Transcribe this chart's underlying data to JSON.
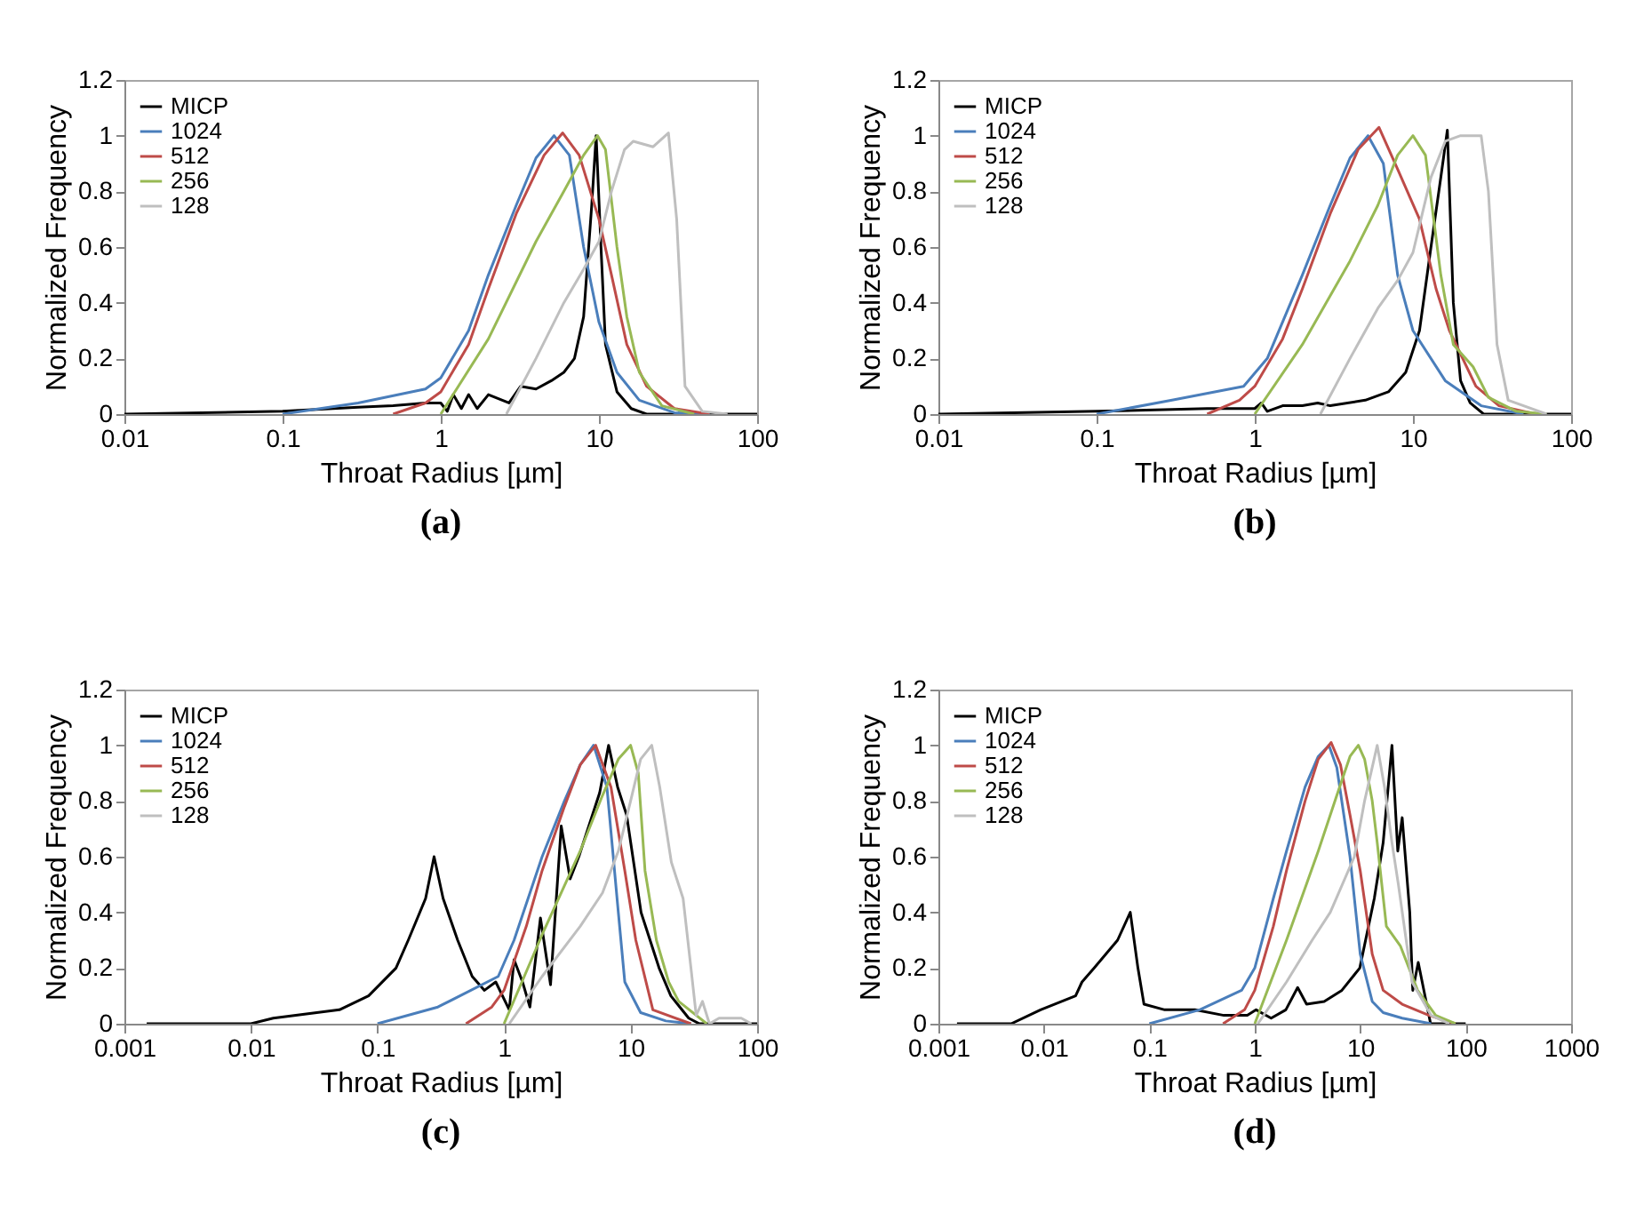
{
  "chart_data": [
    {
      "type": "line",
      "title": "(a)",
      "xlabel": "Throat Radius [µm]",
      "ylabel": "Normalized Frequency",
      "log": "x",
      "grid": false,
      "legend": "top left",
      "xlim": [
        0.01,
        100
      ],
      "xticks": [
        0.01,
        0.1,
        1,
        10,
        100
      ],
      "ylim": [
        0,
        1.2
      ],
      "yticks": [
        0,
        0.2,
        0.4,
        0.6,
        0.8,
        1,
        1.2
      ],
      "series": [
        {
          "name": "MICP",
          "color": "#000000",
          "x": [
            0.01,
            0.1,
            0.3,
            0.5,
            0.8,
            1,
            1.1,
            1.2,
            1.35,
            1.5,
            1.7,
            2,
            2.7,
            3.2,
            4,
            5,
            6,
            7,
            8,
            9,
            9.6,
            10.3,
            11,
            13,
            16,
            20,
            100
          ],
          "values": [
            0,
            0.01,
            0.025,
            0.03,
            0.04,
            0.04,
            0.01,
            0.07,
            0.02,
            0.07,
            0.02,
            0.07,
            0.04,
            0.1,
            0.09,
            0.12,
            0.15,
            0.2,
            0.35,
            0.75,
            1.0,
            0.6,
            0.25,
            0.08,
            0.02,
            0,
            0
          ]
        },
        {
          "name": "1024",
          "color": "#4a7ebb",
          "x": [
            0.1,
            0.3,
            0.8,
            1,
            1.5,
            2,
            3,
            4,
            5.2,
            6.5,
            8,
            10,
            13,
            18,
            30,
            50
          ],
          "values": [
            0,
            0.04,
            0.09,
            0.13,
            0.3,
            0.5,
            0.75,
            0.92,
            1.0,
            0.93,
            0.6,
            0.33,
            0.15,
            0.05,
            0.005,
            0
          ]
        },
        {
          "name": "512",
          "color": "#be4b48",
          "x": [
            0.5,
            0.8,
            1,
            1.5,
            2,
            3,
            4.5,
            5.9,
            7.5,
            10,
            12,
            15,
            20,
            30,
            50
          ],
          "values": [
            0,
            0.04,
            0.08,
            0.25,
            0.45,
            0.72,
            0.93,
            1.01,
            0.93,
            0.7,
            0.5,
            0.25,
            0.1,
            0.02,
            0
          ]
        },
        {
          "name": "256",
          "color": "#98b954",
          "x": [
            1,
            2,
            4,
            6,
            8,
            9.8,
            11,
            13,
            15,
            18,
            25,
            40
          ],
          "values": [
            0,
            0.27,
            0.62,
            0.8,
            0.93,
            1.0,
            0.95,
            0.6,
            0.35,
            0.15,
            0.03,
            0
          ]
        },
        {
          "name": "128",
          "color": "#bfbfbf",
          "x": [
            2.6,
            4,
            6,
            8,
            10,
            12,
            14.5,
            16.5,
            22,
            27.5,
            31,
            35,
            45,
            65
          ],
          "values": [
            0,
            0.2,
            0.4,
            0.52,
            0.62,
            0.8,
            0.95,
            0.98,
            0.96,
            1.01,
            0.7,
            0.1,
            0.01,
            0
          ]
        }
      ]
    },
    {
      "type": "line",
      "title": "(b)",
      "xlabel": "Throat Radius [µm]",
      "ylabel": "Normalized Frequency",
      "log": "x",
      "grid": false,
      "legend": "top left",
      "xlim": [
        0.01,
        100
      ],
      "xticks": [
        0.01,
        0.1,
        1,
        10,
        100
      ],
      "ylim": [
        0,
        1.2
      ],
      "yticks": [
        0,
        0.2,
        0.4,
        0.6,
        0.8,
        1,
        1.2
      ],
      "series": [
        {
          "name": "MICP",
          "color": "#000000",
          "x": [
            0.01,
            0.1,
            0.5,
            1,
            1.1,
            1.2,
            1.5,
            2,
            2.5,
            3,
            5,
            7,
            9,
            11,
            13,
            15,
            16.5,
            18,
            20,
            23,
            28,
            100
          ],
          "values": [
            0,
            0.01,
            0.02,
            0.02,
            0.04,
            0.01,
            0.03,
            0.03,
            0.04,
            0.03,
            0.05,
            0.08,
            0.15,
            0.3,
            0.6,
            0.85,
            1.02,
            0.4,
            0.12,
            0.04,
            0,
            0
          ]
        },
        {
          "name": "1024",
          "color": "#4a7ebb",
          "x": [
            0.1,
            0.3,
            0.85,
            1.2,
            2,
            3,
            4,
            5.2,
            6.5,
            8,
            10,
            16,
            27,
            50
          ],
          "values": [
            0,
            0.05,
            0.1,
            0.2,
            0.5,
            0.75,
            0.92,
            1.0,
            0.9,
            0.5,
            0.3,
            0.12,
            0.03,
            0
          ]
        },
        {
          "name": "512",
          "color": "#be4b48",
          "x": [
            0.5,
            0.8,
            1,
            1.5,
            2,
            3,
            4.5,
            6.1,
            8,
            11,
            14,
            17,
            25,
            35,
            60
          ],
          "values": [
            0,
            0.05,
            0.1,
            0.27,
            0.45,
            0.72,
            0.95,
            1.03,
            0.88,
            0.7,
            0.45,
            0.3,
            0.1,
            0.03,
            0
          ]
        },
        {
          "name": "256",
          "color": "#98b954",
          "x": [
            1,
            2,
            4,
            6,
            8,
            10,
            12,
            15,
            18,
            24,
            30,
            45,
            70
          ],
          "values": [
            0,
            0.25,
            0.55,
            0.75,
            0.93,
            1.0,
            0.93,
            0.5,
            0.25,
            0.17,
            0.06,
            0.01,
            0
          ]
        },
        {
          "name": "128",
          "color": "#bfbfbf",
          "x": [
            2.6,
            4,
            6,
            8,
            10,
            13,
            16,
            20,
            27,
            30,
            34,
            40,
            70
          ],
          "values": [
            0,
            0.2,
            0.38,
            0.48,
            0.58,
            0.85,
            0.98,
            1.0,
            1.0,
            0.8,
            0.25,
            0.05,
            0
          ]
        }
      ]
    },
    {
      "type": "line",
      "title": "(c)",
      "xlabel": "Throat Radius [µm]",
      "ylabel": "Normalized Frequency",
      "log": "x",
      "grid": false,
      "legend": "top left",
      "xlim": [
        0.001,
        100
      ],
      "xticks": [
        0.001,
        0.01,
        0.1,
        1,
        10,
        100
      ],
      "ylim": [
        0,
        1.2
      ],
      "yticks": [
        0,
        0.2,
        0.4,
        0.6,
        0.8,
        1,
        1.2
      ],
      "series": [
        {
          "name": "MICP",
          "color": "#000000",
          "x": [
            0.0015,
            0.01,
            0.015,
            0.05,
            0.085,
            0.14,
            0.175,
            0.24,
            0.28,
            0.33,
            0.43,
            0.56,
            0.7,
            0.86,
            1.1,
            1.2,
            1.4,
            1.6,
            1.94,
            2.33,
            2.83,
            3.33,
            3.9,
            5.7,
            6.7,
            7.9,
            9.3,
            12.1,
            16.8,
            20.8,
            28.8,
            35,
            100
          ],
          "values": [
            0,
            0,
            0.02,
            0.05,
            0.1,
            0.2,
            0.3,
            0.45,
            0.6,
            0.45,
            0.3,
            0.17,
            0.12,
            0.15,
            0.05,
            0.23,
            0.15,
            0.06,
            0.38,
            0.14,
            0.71,
            0.52,
            0.6,
            0.83,
            1.0,
            0.85,
            0.75,
            0.4,
            0.2,
            0.1,
            0.02,
            0,
            0
          ]
        },
        {
          "name": "1024",
          "color": "#4a7ebb",
          "x": [
            0.1,
            0.3,
            0.9,
            1.2,
            2,
            3,
            4,
            5.1,
            6.5,
            8,
            9,
            12,
            19,
            30
          ],
          "values": [
            0,
            0.06,
            0.17,
            0.3,
            0.6,
            0.8,
            0.93,
            1.0,
            0.85,
            0.4,
            0.15,
            0.04,
            0.01,
            0
          ]
        },
        {
          "name": "512",
          "color": "#be4b48",
          "x": [
            0.5,
            0.8,
            1,
            1.5,
            2,
            3,
            4,
            5.3,
            7,
            9,
            11,
            15,
            30
          ],
          "values": [
            0,
            0.06,
            0.12,
            0.35,
            0.55,
            0.78,
            0.93,
            1.0,
            0.85,
            0.55,
            0.3,
            0.05,
            0
          ]
        },
        {
          "name": "256",
          "color": "#98b954",
          "x": [
            1,
            2,
            4,
            6,
            8,
            10,
            11.5,
            13,
            16,
            20,
            24,
            40
          ],
          "values": [
            0,
            0.32,
            0.62,
            0.82,
            0.95,
            1.0,
            0.9,
            0.55,
            0.3,
            0.15,
            0.08,
            0
          ]
        },
        {
          "name": "128",
          "color": "#bfbfbf",
          "x": [
            1.1,
            2,
            4,
            6,
            8,
            10,
            12,
            14.7,
            17,
            21,
            26,
            30,
            33,
            37,
            42,
            50,
            75,
            90
          ],
          "values": [
            0,
            0.17,
            0.35,
            0.47,
            0.62,
            0.8,
            0.95,
            1.0,
            0.85,
            0.58,
            0.45,
            0.2,
            0.03,
            0.08,
            0,
            0.02,
            0.02,
            0
          ]
        }
      ]
    },
    {
      "type": "line",
      "title": "(d)",
      "xlabel": "Throat Radius [µm]",
      "ylabel": "Normalized Frequency",
      "log": "x",
      "grid": false,
      "legend": "top left",
      "xlim": [
        0.001,
        1000
      ],
      "xticks": [
        0.001,
        0.01,
        0.1,
        1,
        10,
        100,
        1000
      ],
      "ylim": [
        0,
        1.2
      ],
      "yticks": [
        0,
        0.2,
        0.4,
        0.6,
        0.8,
        1,
        1.2
      ],
      "series": [
        {
          "name": "MICP",
          "color": "#000000",
          "x": [
            0.0015,
            0.0049,
            0.0093,
            0.02,
            0.023,
            0.03,
            0.05,
            0.066,
            0.078,
            0.089,
            0.14,
            0.27,
            0.51,
            0.85,
            1.03,
            1.43,
            1.97,
            2.55,
            3.1,
            4.55,
            6.7,
            9.9,
            13.6,
            16.5,
            20,
            22.7,
            25,
            29.5,
            31.5,
            35.5,
            46.5,
            100
          ],
          "values": [
            0,
            0,
            0.05,
            0.1,
            0.15,
            0.2,
            0.3,
            0.4,
            0.2,
            0.07,
            0.05,
            0.05,
            0.03,
            0.03,
            0.05,
            0.02,
            0.05,
            0.13,
            0.07,
            0.08,
            0.12,
            0.2,
            0.45,
            0.65,
            1.0,
            0.62,
            0.74,
            0.4,
            0.12,
            0.22,
            0,
            0
          ]
        },
        {
          "name": "1024",
          "color": "#4a7ebb",
          "x": [
            0.1,
            0.3,
            0.75,
            1,
            1.5,
            2,
            3,
            4,
            5.05,
            6,
            8,
            10,
            13,
            16.5,
            25,
            47
          ],
          "values": [
            0,
            0.05,
            0.12,
            0.2,
            0.45,
            0.62,
            0.85,
            0.96,
            1.0,
            0.92,
            0.6,
            0.25,
            0.08,
            0.04,
            0.02,
            0
          ]
        },
        {
          "name": "512",
          "color": "#be4b48",
          "x": [
            0.5,
            0.8,
            1,
            1.5,
            2,
            3,
            4,
            5.3,
            6.5,
            8,
            10,
            13,
            16.5,
            25,
            45,
            80
          ],
          "values": [
            0,
            0.05,
            0.12,
            0.35,
            0.55,
            0.8,
            0.95,
            1.01,
            0.93,
            0.75,
            0.55,
            0.25,
            0.12,
            0.07,
            0.03,
            0
          ]
        },
        {
          "name": "256",
          "color": "#98b954",
          "x": [
            1,
            2,
            4,
            6,
            8,
            9.6,
            11,
            13,
            14.5,
            17.7,
            24,
            35,
            52,
            80
          ],
          "values": [
            0,
            0.3,
            0.62,
            0.82,
            0.96,
            1.0,
            0.95,
            0.8,
            0.65,
            0.35,
            0.28,
            0.12,
            0.03,
            0
          ]
        },
        {
          "name": "128",
          "color": "#bfbfbf",
          "x": [
            1.07,
            2,
            3.5,
            5.2,
            8.8,
            11,
            14.5,
            17,
            20,
            23,
            31,
            47,
            70
          ],
          "values": [
            0,
            0.15,
            0.3,
            0.4,
            0.6,
            0.8,
            1.0,
            0.85,
            0.65,
            0.5,
            0.15,
            0.03,
            0
          ]
        }
      ]
    }
  ]
}
